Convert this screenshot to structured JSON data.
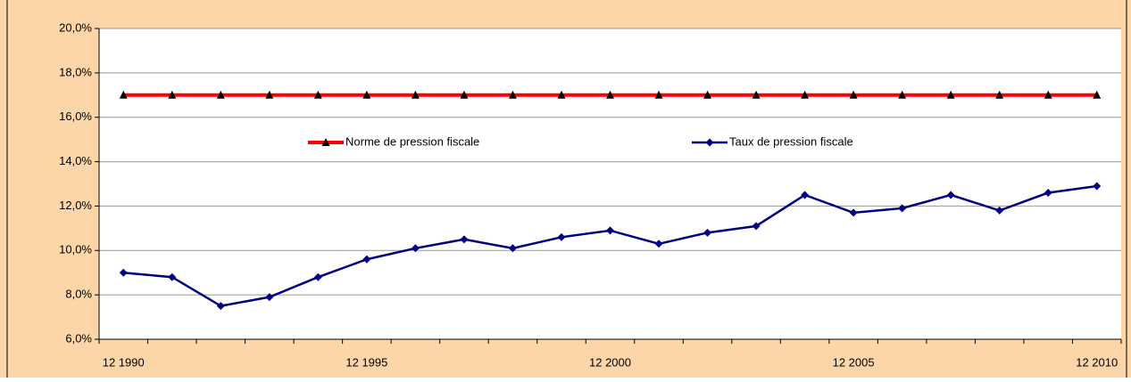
{
  "chart_data": {
    "type": "line",
    "categories": [
      "12 1990",
      null,
      null,
      null,
      null,
      "12 1995",
      null,
      null,
      null,
      null,
      "12 2000",
      null,
      null,
      null,
      null,
      "12 2005",
      null,
      null,
      null,
      null,
      "12 2010"
    ],
    "series": [
      {
        "name": "Norme de pression fiscale",
        "color": "#ff0000",
        "marker": "triangle",
        "values": [
          17,
          17,
          17,
          17,
          17,
          17,
          17,
          17,
          17,
          17,
          17,
          17,
          17,
          17,
          17,
          17,
          17,
          17,
          17,
          17,
          17
        ]
      },
      {
        "name": "Taux de pression fiscale",
        "color": "#000080",
        "marker": "diamond",
        "values": [
          9.0,
          8.8,
          7.5,
          7.9,
          8.8,
          9.6,
          10.1,
          10.5,
          10.1,
          10.6,
          10.9,
          10.3,
          10.8,
          11.1,
          12.5,
          11.7,
          11.9,
          12.5,
          11.8,
          12.6,
          12.9
        ]
      }
    ],
    "ylim": [
      6,
      20
    ],
    "yticks": [
      {
        "value": 6,
        "label": "6,0%"
      },
      {
        "value": 8,
        "label": "8,0%"
      },
      {
        "value": 10,
        "label": "10,0%"
      },
      {
        "value": 12,
        "label": "12,0%"
      },
      {
        "value": 14,
        "label": "14,0%"
      },
      {
        "value": 16,
        "label": "16,0%"
      },
      {
        "value": 18,
        "label": "18,0%"
      },
      {
        "value": 20,
        "label": "20,0%"
      }
    ],
    "grid": true
  }
}
